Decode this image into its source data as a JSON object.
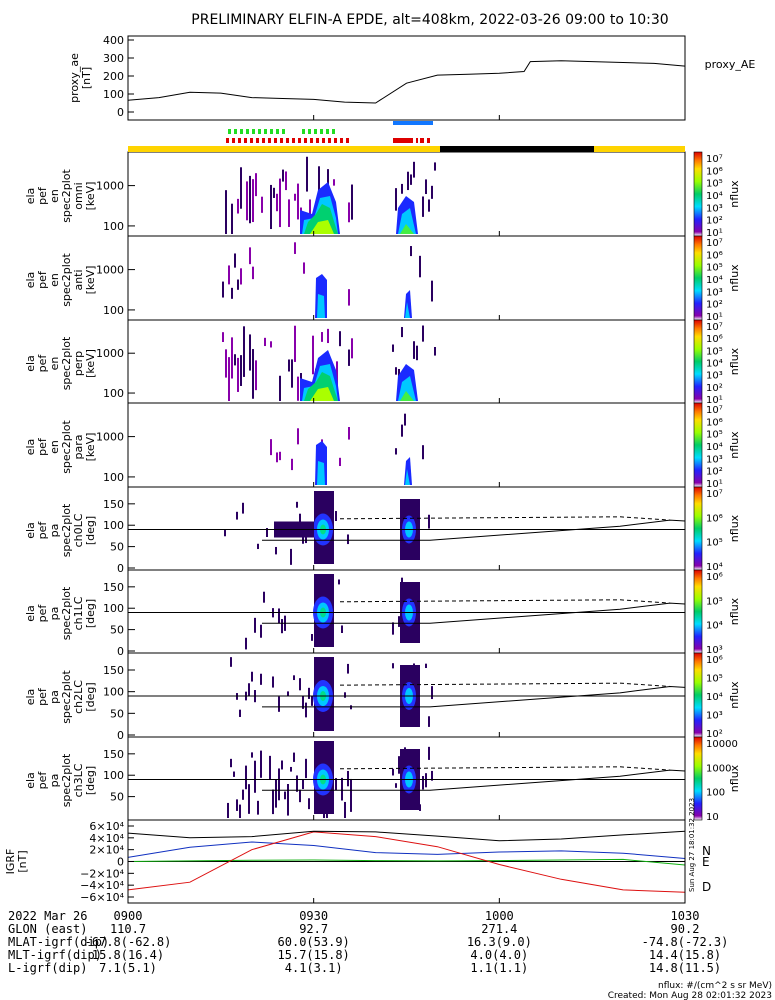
{
  "title": "PRELIMINARY ELFIN-A EPDE, alt=408km, 2022-03-26 09:00 to 10:30",
  "colors": {
    "ae_line": "#000000",
    "bar_green": "#22dd22",
    "bar_red": "#dd0000",
    "bar_blue": "#1177ff",
    "status_yellow": "#ffd400",
    "status_black": "#000000",
    "igrf_n": "#1030c0",
    "igrf_e": "#10b010",
    "igrf_d": "#dd1010",
    "igrf_total": "#000000"
  },
  "panels": [
    {
      "id": "ae",
      "ylabel": [
        "proxy_ae",
        "[nT]"
      ],
      "ticks": [
        "400",
        "300",
        "200",
        "100",
        "0"
      ],
      "right_label": "proxy_AE"
    },
    {
      "id": "en",
      "ylabel": [
        "ela",
        "pef",
        "en",
        "spec2plot",
        "omni",
        "[keV]"
      ],
      "ticks": [
        "1000",
        "100"
      ],
      "cb_label": "nflux"
    },
    {
      "id": "en-anti",
      "ylabel": [
        "ela",
        "pef",
        "en",
        "spec2plot",
        "anti",
        "[keV]"
      ],
      "ticks": [
        "1000",
        "100"
      ],
      "cb_label": "nflux"
    },
    {
      "id": "en-perp",
      "ylabel": [
        "ela",
        "pef",
        "en",
        "spec2plot",
        "perp",
        "[keV]"
      ],
      "ticks": [
        "1000",
        "100"
      ],
      "cb_label": "nflux"
    },
    {
      "id": "en-para",
      "ylabel": [
        "ela",
        "pef",
        "en",
        "spec2plot",
        "para",
        "[keV]"
      ],
      "ticks": [
        "1000",
        "100"
      ],
      "cb_label": "nflux"
    },
    {
      "id": "pa0",
      "ylabel": [
        "ela",
        "pef",
        "pa",
        "spec2plot",
        "ch0LC",
        "[deg]"
      ],
      "ticks": [
        "150",
        "100",
        "50",
        "0"
      ],
      "cb_label": "nflux"
    },
    {
      "id": "pa1",
      "ylabel": [
        "ela",
        "pef",
        "pa",
        "spec2plot",
        "ch1LC",
        "[deg]"
      ],
      "ticks": [
        "150",
        "100",
        "50",
        "0"
      ],
      "cb_label": "nflux"
    },
    {
      "id": "pa2",
      "ylabel": [
        "ela",
        "pef",
        "pa",
        "spec2plot",
        "ch2LC",
        "[deg]"
      ],
      "ticks": [
        "150",
        "100",
        "50",
        "0"
      ],
      "cb_label": "nflux"
    },
    {
      "id": "pa3",
      "ylabel": [
        "ela",
        "pef",
        "pa",
        "spec2plot",
        "ch3LC",
        "[deg]"
      ],
      "ticks": [
        "150",
        "100",
        "50"
      ],
      "cb_label": "nflux"
    },
    {
      "id": "igrf",
      "ylabel": [
        "IGRF",
        "[nT]"
      ],
      "ticks": [
        "6×10⁴",
        "4×10⁴",
        "2×10⁴",
        "0",
        "−2×10⁴",
        "−4×10⁴",
        "−6×10⁴"
      ],
      "comp_labels": [
        "N",
        "E",
        "D"
      ]
    }
  ],
  "colorbars": [
    [
      "10⁷",
      "10⁶",
      "10⁵",
      "10⁴",
      "10³",
      "10²",
      "10¹"
    ],
    [
      "10⁷",
      "10⁶",
      "10⁵",
      "10⁴",
      "10³",
      "10²",
      "10¹"
    ],
    [
      "10⁷",
      "10⁶",
      "10⁵",
      "10⁴",
      "10³",
      "10²",
      "10¹"
    ],
    [
      "10⁷",
      "10⁶",
      "10⁵",
      "10⁴",
      "10³",
      "10²",
      "10¹"
    ],
    [
      "10⁷",
      "10⁶",
      "10⁵",
      "10⁴"
    ],
    [
      "10⁶",
      "10⁵",
      "10⁴",
      "10³"
    ],
    [
      "10⁶",
      "10⁵",
      "10⁴",
      "10³",
      "10²"
    ],
    [
      "10000",
      "1000",
      "100",
      "10"
    ]
  ],
  "side_stamp": "Sun Aug 27 18:01:32 2023",
  "footer": {
    "rows": [
      {
        "label": "2022 Mar 26",
        "values": [
          "0900",
          "0930",
          "1000",
          "1030"
        ]
      },
      {
        "label": "GLON (east)",
        "values": [
          "110.7",
          "92.7",
          "271.4",
          "90.2"
        ]
      },
      {
        "label": "MLAT-igrf(dip)",
        "values": [
          "-67.8(-62.8)",
          "60.0(53.9)",
          "16.3(9.0)",
          "-74.8(-72.3)"
        ]
      },
      {
        "label": "MLT-igrf(dip)",
        "values": [
          "15.8(16.4)",
          "15.7(15.8)",
          "4.0(4.0)",
          "14.4(15.8)"
        ]
      },
      {
        "label": "L-igrf(dip)",
        "values": [
          "7.1(5.1)",
          "4.1(3.1)",
          "1.1(1.1)",
          "14.8(11.5)"
        ]
      }
    ],
    "note_units": "nflux: #/(cm^2 s sr MeV)",
    "note_created": "Created: Mon Aug 28 02:01:32 2023"
  },
  "chart_data": {
    "type": "heatmap",
    "title": "PRELIMINARY ELFIN-A EPDE, alt=408km, 2022-03-26 09:00 to 10:30",
    "time_axis": {
      "start": "09:00",
      "end": "10:30",
      "ticks": [
        "0900",
        "0930",
        "1000",
        "1030"
      ]
    },
    "proxy_ae": {
      "ylabel": "proxy_ae [nT]",
      "ylim": [
        0,
        400
      ],
      "times_min": [
        0,
        5,
        10,
        15,
        20,
        25,
        30,
        35,
        40,
        45,
        50,
        55,
        60,
        64,
        65,
        70,
        75,
        80,
        85,
        90
      ],
      "values": [
        65,
        80,
        110,
        105,
        80,
        75,
        70,
        55,
        50,
        160,
        205,
        210,
        215,
        225,
        280,
        285,
        280,
        275,
        270,
        255
      ]
    },
    "science_zones": [
      {
        "start_min": 20,
        "end_min": 36
      },
      {
        "start_min": 52,
        "end_min": 58
      }
    ],
    "spin_sector_markers": [
      {
        "start_min": 53,
        "end_min": 58
      }
    ],
    "energy_panels": {
      "ylim_keV": [
        50,
        7000
      ],
      "scale": "log",
      "colorbar_range": [
        10,
        10000000
      ]
    },
    "pitch_angle_panels": {
      "ylim_deg": [
        0,
        180
      ],
      "loss_cone_deg": 65,
      "antiloss_cone_deg": 115,
      "solid_line_deg": 90
    },
    "igrf": {
      "ylabel": "IGRF [nT]",
      "ylim": [
        -60000,
        60000
      ],
      "series": [
        {
          "name": "N",
          "times_min": [
            0,
            10,
            20,
            30,
            40,
            50,
            60,
            70,
            80,
            90
          ],
          "values": [
            7000,
            24000,
            33000,
            27000,
            15000,
            12000,
            16000,
            18000,
            14000,
            5000
          ]
        },
        {
          "name": "E",
          "times_min": [
            0,
            10,
            20,
            30,
            40,
            50,
            60,
            70,
            80,
            90
          ],
          "values": [
            0,
            1000,
            2000,
            2500,
            1500,
            1000,
            1500,
            2500,
            3500,
            -6000
          ]
        },
        {
          "name": "D",
          "times_min": [
            0,
            10,
            20,
            30,
            40,
            50,
            60,
            70,
            80,
            90
          ],
          "values": [
            -48000,
            -35000,
            20000,
            50000,
            42000,
            25000,
            -5000,
            -30000,
            -48000,
            -52000
          ]
        },
        {
          "times_min": [
            0,
            10,
            20,
            30,
            40,
            50,
            60,
            70,
            80,
            90
          ],
          "values": [
            48000,
            40000,
            42000,
            51000,
            50000,
            43000,
            35000,
            38000,
            45000,
            51000
          ]
        }
      ]
    }
  }
}
